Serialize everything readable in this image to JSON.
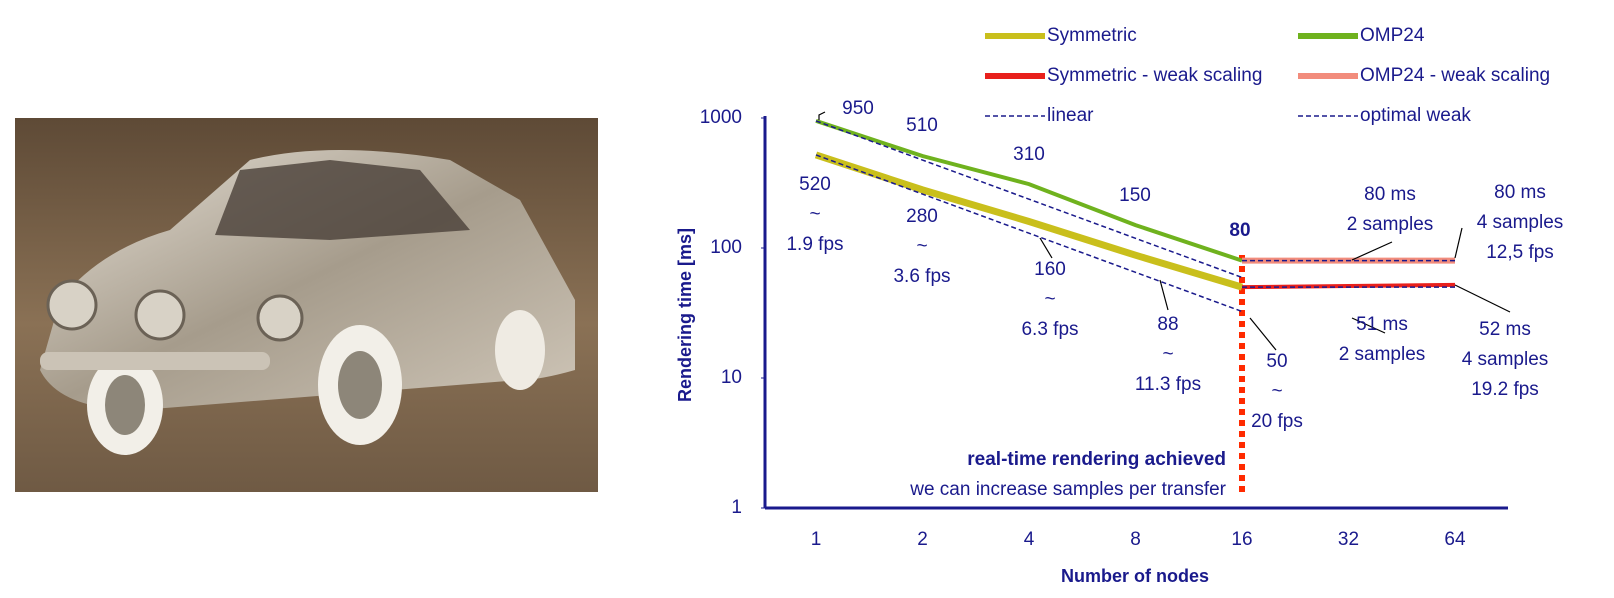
{
  "chart_data": {
    "type": "line",
    "y_label": "Rendering time [ms]",
    "x_label": "Number of nodes",
    "categories": [
      "1",
      "2",
      "4",
      "8",
      "16",
      "32",
      "64"
    ],
    "ylim": [
      1,
      1000
    ],
    "yticks": [
      1,
      10,
      100,
      1000
    ],
    "log_y": true,
    "legend": "top",
    "series": [
      {
        "name": "Symmetric",
        "color": "#c9bf1c",
        "width": 7,
        "dash": false,
        "values": [
          520,
          280,
          160,
          88,
          50,
          null,
          null
        ],
        "value_labels": [
          [
            "520",
            "~",
            "1.9 fps"
          ],
          [
            "280",
            "~",
            "3.6 fps"
          ],
          [
            "160",
            "~",
            "6.3 fps"
          ],
          [
            "88",
            "~",
            "11.3 fps"
          ],
          [
            "50",
            "~",
            "20 fps"
          ],
          null,
          null
        ]
      },
      {
        "name": "OMP24",
        "color": "#6fb21e",
        "width": 4,
        "dash": false,
        "values": [
          950,
          510,
          310,
          150,
          80,
          null,
          null
        ],
        "value_labels": [
          [
            "950"
          ],
          [
            "510"
          ],
          [
            "310"
          ],
          [
            "150"
          ],
          [
            "80"
          ],
          null,
          null
        ]
      },
      {
        "name": "Symmetric - weak scaling",
        "color": "#e8201c",
        "width": 4,
        "dash": false,
        "values": [
          null,
          null,
          null,
          null,
          50,
          51,
          52
        ],
        "value_labels": [
          null,
          null,
          null,
          null,
          null,
          [
            "51 ms",
            "2 samples"
          ],
          [
            "52 ms",
            "4 samples",
            "19.2 fps"
          ]
        ]
      },
      {
        "name": "OMP24 - weak scaling",
        "color": "#f28c7c",
        "width": 6,
        "dash": false,
        "values": [
          null,
          null,
          null,
          null,
          80,
          80,
          80
        ],
        "value_labels": [
          null,
          null,
          null,
          null,
          null,
          [
            "80 ms",
            "2 samples"
          ],
          [
            "80 ms",
            "4 samples",
            "12,5 fps"
          ]
        ]
      },
      {
        "name": "linear",
        "color": "#1a1a8c",
        "width": 1.5,
        "dash": true,
        "values": [
          520,
          260,
          130,
          65,
          32.5,
          null,
          null
        ]
      },
      {
        "name": "linear",
        "color": "#1a1a8c",
        "width": 1.5,
        "dash": true,
        "values": [
          950,
          475,
          237.5,
          118.75,
          59.375,
          null,
          null
        ]
      },
      {
        "name": "optimal weak",
        "color": "#1a1a8c",
        "width": 1.5,
        "dash": true,
        "values": [
          null,
          null,
          null,
          null,
          50,
          50,
          50
        ]
      },
      {
        "name": "optimal weak",
        "color": "#1a1a8c",
        "width": 1.5,
        "dash": true,
        "values": [
          null,
          null,
          null,
          null,
          80,
          80,
          80
        ]
      }
    ],
    "annotations": [
      "real-time rendering  achieved",
      "we can increase samples per transfer"
    ]
  }
}
